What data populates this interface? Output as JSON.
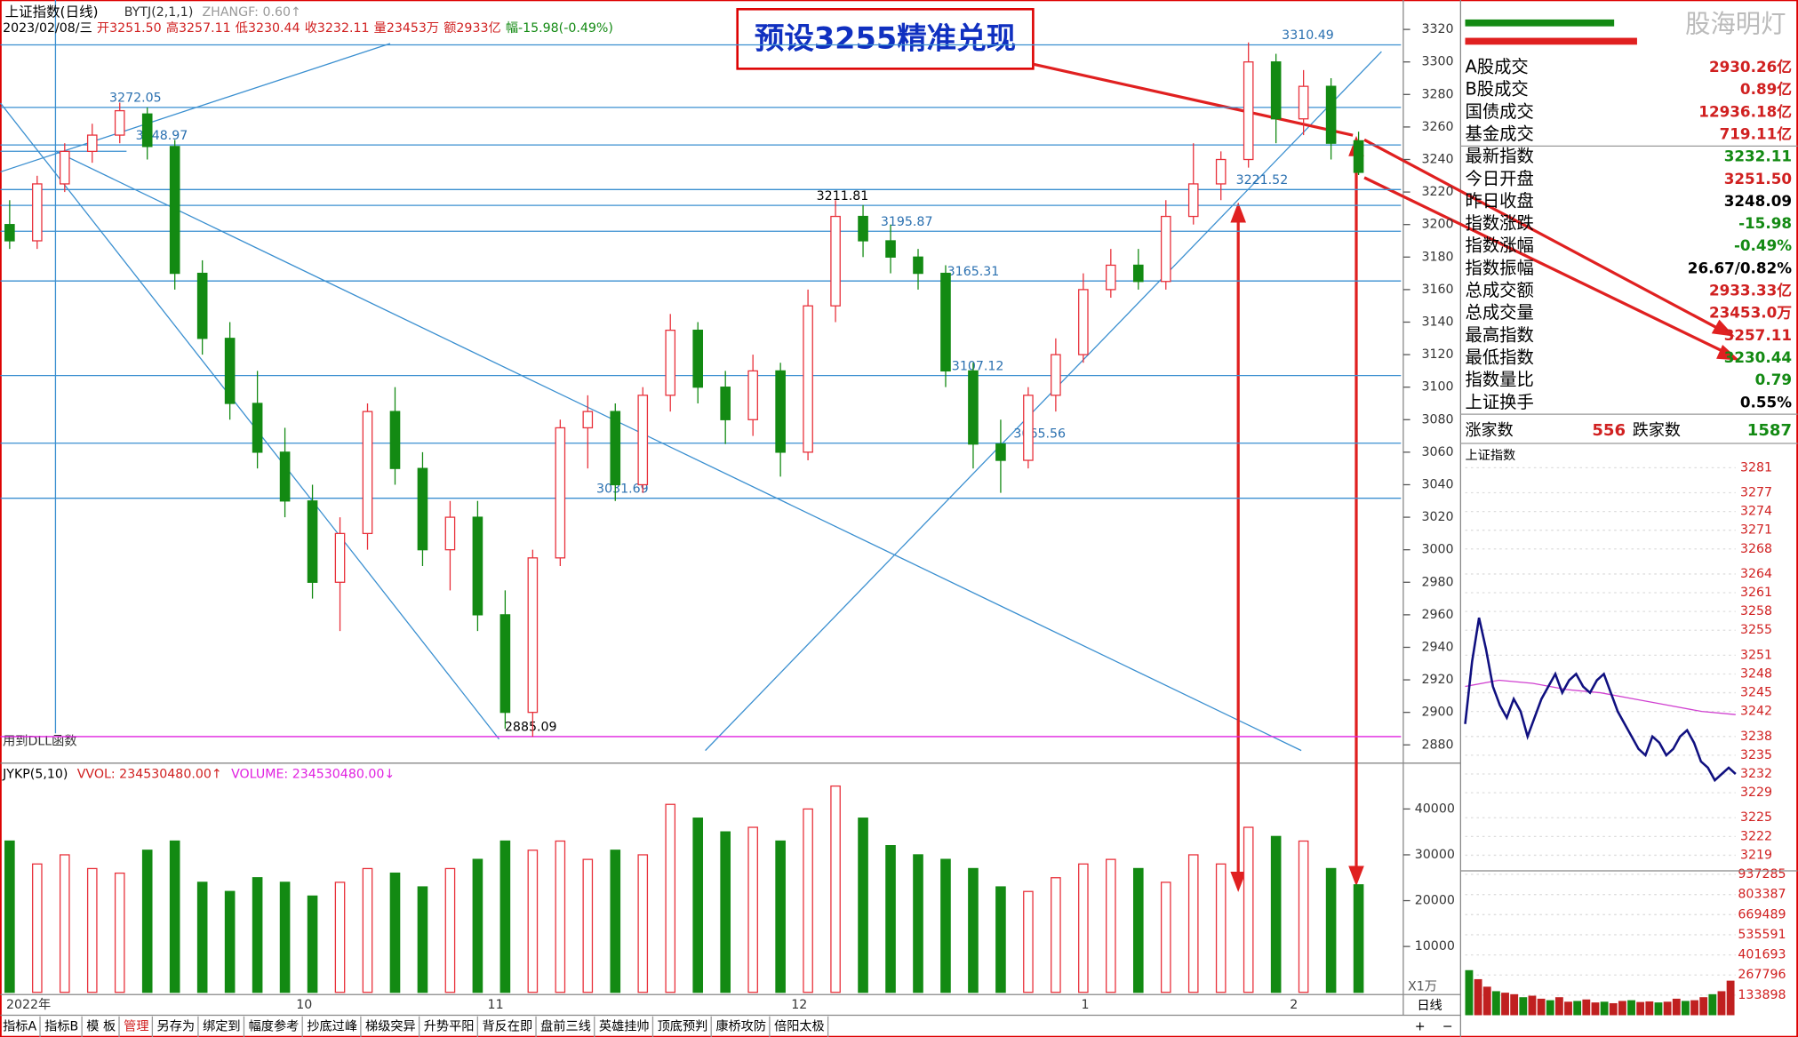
{
  "chart_data": {
    "type": "candlestick",
    "header": "上证指数(日线)",
    "indicator": "BYTJ(2,1,1)",
    "indicator_value": "ZHANGF: 0.60↑",
    "quote_line": [
      "2023/02/08/三",
      "开3251.50",
      "高3257.11",
      "低3230.44",
      "收3232.11",
      "量23453万",
      "额2933亿",
      "幅-15.98(-0.49%)"
    ],
    "callout": "预设3255精准兑现",
    "note": "用到DLL函数",
    "ylim": [
      2873,
      3324
    ],
    "yticks": [
      3320,
      3300,
      3280,
      3260,
      3240,
      3220,
      3200,
      3180,
      3160,
      3140,
      3120,
      3100,
      3080,
      3060,
      3040,
      3020,
      3000,
      2980,
      2960,
      2940,
      2920,
      2900,
      2880
    ],
    "levels": [
      {
        "value": 3272.05,
        "color": "#3a8fd0"
      },
      {
        "value": 3248.97,
        "color": "#3a8fd0"
      },
      {
        "value": 3211.81,
        "color": "#3a8fd0"
      },
      {
        "value": 3195.87,
        "color": "#3a8fd0"
      },
      {
        "value": 3165.31,
        "color": "#3a8fd0"
      },
      {
        "value": 3107.12,
        "color": "#3a8fd0"
      },
      {
        "value": 3065.56,
        "color": "#3a8fd0"
      },
      {
        "value": 3031.69,
        "color": "#3a8fd0"
      },
      {
        "value": 2885.09,
        "color": "#e020e0"
      },
      {
        "value": 3221.52,
        "color": "#3a8fd0"
      },
      {
        "value": 3310.49,
        "color": "#3a8fd0"
      }
    ],
    "x_labels": [
      "2022年",
      "10",
      "11",
      "12",
      "1",
      "2"
    ],
    "candles": [
      [
        3200,
        3215,
        3185,
        3190
      ],
      [
        3190,
        3230,
        3185,
        3225
      ],
      [
        3225,
        3250,
        3220,
        3245
      ],
      [
        3245,
        3262,
        3238,
        3255
      ],
      [
        3255,
        3275,
        3250,
        3270
      ],
      [
        3268,
        3272,
        3240,
        3248
      ],
      [
        3248,
        3252,
        3160,
        3170
      ],
      [
        3170,
        3178,
        3120,
        3130
      ],
      [
        3130,
        3140,
        3080,
        3090
      ],
      [
        3090,
        3110,
        3050,
        3060
      ],
      [
        3060,
        3075,
        3020,
        3030
      ],
      [
        3030,
        3040,
        2970,
        2980
      ],
      [
        2980,
        3020,
        2950,
        3010
      ],
      [
        3010,
        3090,
        3000,
        3085
      ],
      [
        3085,
        3100,
        3040,
        3050
      ],
      [
        3050,
        3060,
        2990,
        3000
      ],
      [
        3000,
        3030,
        2975,
        3020
      ],
      [
        3020,
        3030,
        2950,
        2960
      ],
      [
        2960,
        2975,
        2890,
        2900
      ],
      [
        2900,
        3000,
        2885,
        2995
      ],
      [
        2995,
        3080,
        2990,
        3075
      ],
      [
        3075,
        3095,
        3050,
        3085
      ],
      [
        3085,
        3090,
        3030,
        3040
      ],
      [
        3040,
        3100,
        3035,
        3095
      ],
      [
        3095,
        3145,
        3085,
        3135
      ],
      [
        3135,
        3140,
        3090,
        3100
      ],
      [
        3100,
        3110,
        3065,
        3080
      ],
      [
        3080,
        3120,
        3070,
        3110
      ],
      [
        3110,
        3115,
        3045,
        3060
      ],
      [
        3060,
        3160,
        3055,
        3150
      ],
      [
        3150,
        3215,
        3140,
        3205
      ],
      [
        3205,
        3212,
        3180,
        3190
      ],
      [
        3190,
        3200,
        3170,
        3180
      ],
      [
        3180,
        3185,
        3160,
        3170
      ],
      [
        3170,
        3175,
        3100,
        3110
      ],
      [
        3110,
        3115,
        3050,
        3065
      ],
      [
        3065,
        3080,
        3035,
        3055
      ],
      [
        3055,
        3100,
        3050,
        3095
      ],
      [
        3095,
        3130,
        3085,
        3120
      ],
      [
        3120,
        3170,
        3115,
        3160
      ],
      [
        3160,
        3185,
        3155,
        3175
      ],
      [
        3175,
        3185,
        3160,
        3165
      ],
      [
        3165,
        3215,
        3160,
        3205
      ],
      [
        3205,
        3250,
        3200,
        3225
      ],
      [
        3225,
        3245,
        3215,
        3240
      ],
      [
        3240,
        3312,
        3235,
        3300
      ],
      [
        3300,
        3305,
        3250,
        3265
      ],
      [
        3265,
        3295,
        3255,
        3285
      ],
      [
        3285,
        3290,
        3240,
        3250
      ],
      [
        3251.5,
        3257.11,
        3230.44,
        3232.11
      ]
    ],
    "volume_header": [
      "JYKP(5,10)",
      "VVOL: 234530480.00↑",
      "VOLUME: 234530480.00↓"
    ],
    "volume_unit": "X1万",
    "vlim": [
      0,
      49500
    ],
    "vticks": [
      40000,
      30000,
      20000,
      10000
    ],
    "volumes": [
      33000,
      28000,
      30000,
      27000,
      26000,
      31000,
      33000,
      24000,
      22000,
      25000,
      24000,
      21000,
      24000,
      27000,
      26000,
      23000,
      27000,
      29000,
      33000,
      31000,
      33000,
      29000,
      31000,
      30000,
      41000,
      38000,
      35000,
      36000,
      33000,
      40000,
      45000,
      38000,
      32000,
      30000,
      29000,
      27000,
      23000,
      22000,
      25000,
      28000,
      29000,
      27000,
      24000,
      30000,
      28000,
      36000,
      34000,
      33000,
      27000,
      23453
    ],
    "up_color": "#e8303a",
    "down_color": "#138a13"
  },
  "tabs": [
    "指标A",
    "指标B",
    "模 板",
    "管理",
    "另存为",
    "绑定到",
    "幅度参考",
    "抄底过峰",
    "梯级突异",
    "升势平阳",
    "背反在即",
    "盘前三线",
    "英雄挂帅",
    "顶底预判",
    "康桥攻防",
    "倍阳太极"
  ],
  "period": "日线",
  "zoom": [
    "+",
    "−"
  ],
  "watermark": "股海明灯",
  "info": {
    "rows": [
      {
        "label": "A股成交",
        "value": "2930.26亿",
        "color": "#d02020"
      },
      {
        "label": "B股成交",
        "value": "0.89亿",
        "color": "#d02020"
      },
      {
        "label": "国债成交",
        "value": "12936.18亿",
        "color": "#d02020"
      },
      {
        "label": "基金成交",
        "value": "719.11亿",
        "color": "#d02020"
      },
      {
        "label": "最新指数",
        "value": "3232.11",
        "color": "#138a13"
      },
      {
        "label": "今日开盘",
        "value": "3251.50",
        "color": "#d02020"
      },
      {
        "label": "昨日收盘",
        "value": "3248.09",
        "color": "#000"
      },
      {
        "label": "指数涨跌",
        "value": "-15.98",
        "color": "#138a13"
      },
      {
        "label": "指数涨幅",
        "value": "-0.49%",
        "color": "#138a13"
      },
      {
        "label": "指数振幅",
        "value": "26.67/0.82%",
        "color": "#000"
      },
      {
        "label": "总成交额",
        "value": "2933.33亿",
        "color": "#d02020"
      },
      {
        "label": "总成交量",
        "value": "23453.0万",
        "color": "#d02020"
      },
      {
        "label": "最高指数",
        "value": "3257.11",
        "color": "#d02020"
      },
      {
        "label": "最低指数",
        "value": "3230.44",
        "color": "#138a13"
      },
      {
        "label": "指数量比",
        "value": "0.79",
        "color": "#138a13"
      },
      {
        "label": "上证换手",
        "value": "0.55%",
        "color": "#000"
      }
    ],
    "breadth": {
      "up_label": "涨家数",
      "up": "556",
      "down_label": "跌家数",
      "down": "1587"
    },
    "intraday_title": "上证指数"
  },
  "intraday": {
    "type": "line",
    "ylim": [
      3216.5,
      3282.5
    ],
    "yticks": [
      3281,
      3277,
      3274,
      3271,
      3268,
      3264,
      3261,
      3258,
      3255,
      3251,
      3248,
      3245,
      3242,
      3238,
      3235,
      3232,
      3229,
      3225,
      3222,
      3219
    ],
    "prices": [
      3240,
      3250,
      3257,
      3252,
      3246,
      3243,
      3241,
      3244,
      3242,
      3238,
      3241,
      3244,
      3246,
      3248,
      3245,
      3247,
      3248,
      3246,
      3245,
      3247,
      3248,
      3245,
      3242,
      3240,
      3238,
      3236,
      3235,
      3238,
      3237,
      3235,
      3236,
      3238,
      3239,
      3237,
      3234,
      3233,
      3231,
      3232,
      3233,
      3232
    ],
    "avg": [
      3246,
      3247,
      3246.5,
      3245.5,
      3245,
      3244,
      3243,
      3242,
      3241.5
    ],
    "vlim": [
      0,
      961000
    ],
    "vticks": [
      937285,
      803387,
      669489,
      535591,
      401693,
      267796,
      133898
    ],
    "volumes": [
      300000,
      240000,
      190000,
      160000,
      150000,
      140000,
      120000,
      130000,
      110000,
      100000,
      120000,
      90000,
      95000,
      105000,
      85000,
      90000,
      80000,
      95000,
      100000,
      88000,
      92000,
      85000,
      90000,
      110000,
      95000,
      100000,
      120000,
      140000,
      160000,
      230000
    ],
    "color": "#101080",
    "avg_color": "#d040d0"
  }
}
